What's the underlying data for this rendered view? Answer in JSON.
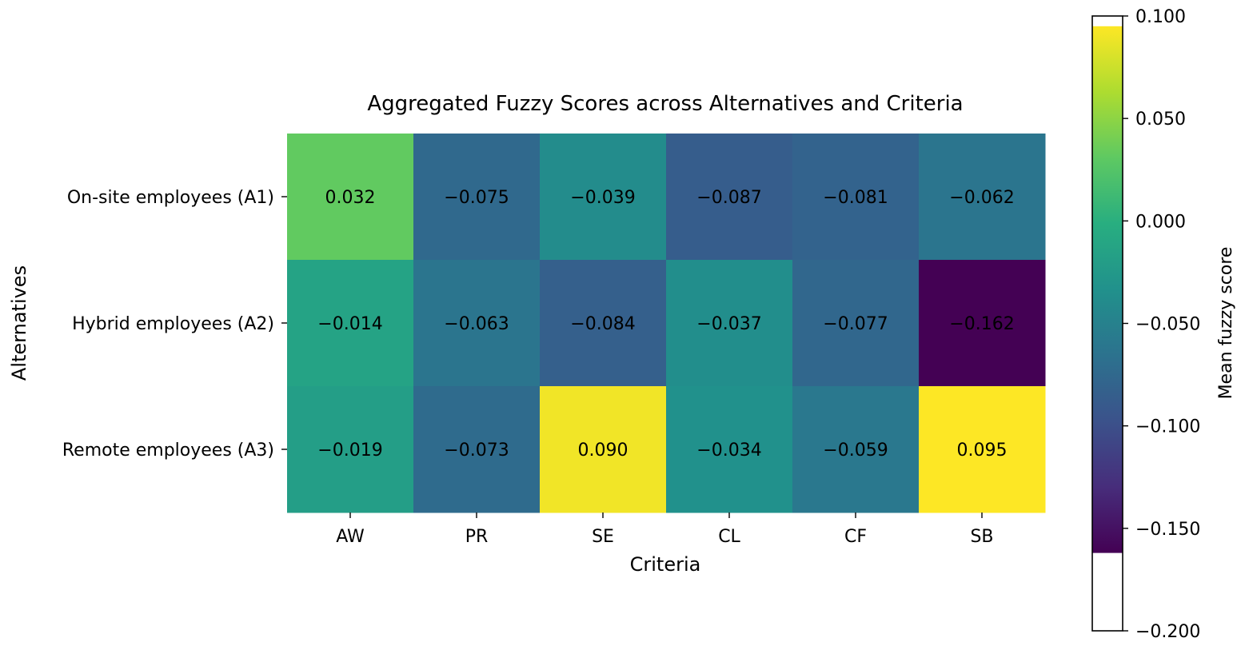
{
  "chart_data": {
    "type": "heatmap",
    "title": "Aggregated Fuzzy Scores across Alternatives and Criteria",
    "xlabel": "Criteria",
    "ylabel": "Alternatives",
    "x_categories": [
      "AW",
      "PR",
      "SE",
      "CL",
      "CF",
      "SB"
    ],
    "y_categories": [
      "On-site employees (A1)",
      "Hybrid employees (A2)",
      "Remote employees (A3)"
    ],
    "values": [
      [
        0.032,
        -0.075,
        -0.039,
        -0.087,
        -0.081,
        -0.062
      ],
      [
        -0.014,
        -0.063,
        -0.084,
        -0.037,
        -0.077,
        -0.162
      ],
      [
        -0.019,
        -0.073,
        0.09,
        -0.034,
        -0.059,
        0.095
      ]
    ],
    "cell_labels": [
      [
        "0.032",
        "−0.075",
        "−0.039",
        "−0.087",
        "−0.081",
        "−0.062"
      ],
      [
        "−0.014",
        "−0.063",
        "−0.084",
        "−0.037",
        "−0.077",
        "−0.162"
      ],
      [
        "−0.019",
        "−0.073",
        "0.090",
        "−0.034",
        "−0.059",
        "0.095"
      ]
    ],
    "colormap": "viridis",
    "vmin": -0.162,
    "vmax": 0.095,
    "colorbar": {
      "label": "Mean fuzzy score",
      "range": [
        -0.2,
        0.1
      ],
      "ticks": [
        0.1,
        0.05,
        0.0,
        -0.05,
        -0.1,
        -0.15,
        -0.2
      ],
      "tick_labels": [
        "0.100",
        "0.050",
        "0.000",
        "−0.050",
        "−0.100",
        "−0.150",
        "−0.200"
      ]
    },
    "grid": false
  }
}
